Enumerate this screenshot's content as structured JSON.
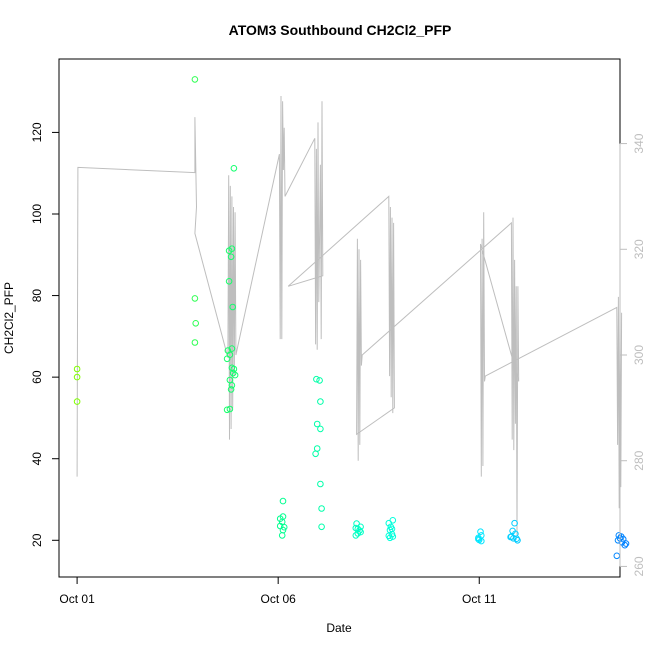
{
  "chart_data": {
    "type": "scatter",
    "title": "ATOM3 Southbound CH2Cl2_PFP",
    "xlabel": "Date",
    "ylabel": "CH2Cl2_PFP",
    "x_ticks": [
      {
        "label": "Oct 01",
        "day": 1
      },
      {
        "label": "Oct 06",
        "day": 6
      },
      {
        "label": "Oct 11",
        "day": 11
      }
    ],
    "xlim_days": [
      0.55,
      14.5
    ],
    "ylim": [
      11,
      138
    ],
    "y_ticks": [
      20,
      40,
      60,
      80,
      100,
      120
    ],
    "y2lim": [
      258,
      356
    ],
    "y2_ticks": [
      260,
      280,
      300,
      320,
      340
    ],
    "y2_color": "#bebebe",
    "grid": false,
    "legend": "none",
    "series": [
      {
        "color_by": "date",
        "colors": [
          "#80ff00",
          "#00ff80",
          "#00ffff",
          "#0080ff"
        ],
        "points": [
          {
            "day": 1.0,
            "y": 62
          },
          {
            "day": 1.0,
            "y": 60
          },
          {
            "day": 1.0,
            "y": 54
          },
          {
            "day": 3.93,
            "y": 133
          },
          {
            "day": 3.93,
            "y": 79.3
          },
          {
            "day": 3.95,
            "y": 73.2
          },
          {
            "day": 3.93,
            "y": 68.5
          },
          {
            "day": 4.78,
            "y": 91
          },
          {
            "day": 4.83,
            "y": 89.5
          },
          {
            "day": 4.85,
            "y": 91.5
          },
          {
            "day": 4.9,
            "y": 111.2
          },
          {
            "day": 4.78,
            "y": 83.5
          },
          {
            "day": 4.87,
            "y": 77.2
          },
          {
            "day": 4.85,
            "y": 67
          },
          {
            "day": 4.75,
            "y": 66.5
          },
          {
            "day": 4.73,
            "y": 64.5
          },
          {
            "day": 4.8,
            "y": 65.5
          },
          {
            "day": 4.85,
            "y": 62.3
          },
          {
            "day": 4.9,
            "y": 62
          },
          {
            "day": 4.88,
            "y": 61
          },
          {
            "day": 4.93,
            "y": 60.5
          },
          {
            "day": 4.8,
            "y": 59.3
          },
          {
            "day": 4.85,
            "y": 58
          },
          {
            "day": 4.83,
            "y": 57
          },
          {
            "day": 4.73,
            "y": 52
          },
          {
            "day": 4.8,
            "y": 52.2
          },
          {
            "day": 6.12,
            "y": 29.6
          },
          {
            "day": 6.12,
            "y": 25.8
          },
          {
            "day": 6.05,
            "y": 25.3
          },
          {
            "day": 6.1,
            "y": 24.5
          },
          {
            "day": 6.05,
            "y": 23.5
          },
          {
            "day": 6.15,
            "y": 23.2
          },
          {
            "day": 6.12,
            "y": 22.5
          },
          {
            "day": 6.1,
            "y": 21.2
          },
          {
            "day": 6.95,
            "y": 59.5
          },
          {
            "day": 7.03,
            "y": 59.2
          },
          {
            "day": 7.05,
            "y": 54
          },
          {
            "day": 6.97,
            "y": 48.5
          },
          {
            "day": 7.05,
            "y": 47.3
          },
          {
            "day": 6.97,
            "y": 42.5
          },
          {
            "day": 6.93,
            "y": 41.2
          },
          {
            "day": 7.05,
            "y": 33.8
          },
          {
            "day": 7.08,
            "y": 27.8
          },
          {
            "day": 7.08,
            "y": 23.3
          },
          {
            "day": 7.95,
            "y": 24.1
          },
          {
            "day": 7.93,
            "y": 23
          },
          {
            "day": 8.02,
            "y": 22.4
          },
          {
            "day": 7.98,
            "y": 21.7
          },
          {
            "day": 7.93,
            "y": 21.2
          },
          {
            "day": 8.05,
            "y": 23.3
          },
          {
            "day": 7.98,
            "y": 22.8
          },
          {
            "day": 8.05,
            "y": 22
          },
          {
            "day": 8.75,
            "y": 24.2
          },
          {
            "day": 8.85,
            "y": 24.9
          },
          {
            "day": 8.8,
            "y": 23.3
          },
          {
            "day": 8.78,
            "y": 22.5
          },
          {
            "day": 8.83,
            "y": 22.8
          },
          {
            "day": 8.75,
            "y": 21.1
          },
          {
            "day": 8.85,
            "y": 20.9
          },
          {
            "day": 8.78,
            "y": 20.6
          },
          {
            "day": 8.83,
            "y": 21.5
          },
          {
            "day": 11.03,
            "y": 22.1
          },
          {
            "day": 11.05,
            "y": 21.2
          },
          {
            "day": 10.98,
            "y": 20.6
          },
          {
            "day": 11.0,
            "y": 20.1
          },
          {
            "day": 11.05,
            "y": 19.8
          },
          {
            "day": 10.98,
            "y": 20.3
          },
          {
            "day": 11.88,
            "y": 24.2
          },
          {
            "day": 11.83,
            "y": 22.3
          },
          {
            "day": 11.9,
            "y": 21.6
          },
          {
            "day": 11.8,
            "y": 20.9
          },
          {
            "day": 11.85,
            "y": 20.5
          },
          {
            "day": 11.78,
            "y": 20.8
          },
          {
            "day": 11.93,
            "y": 20.4
          },
          {
            "day": 11.95,
            "y": 20
          },
          {
            "day": 14.47,
            "y": 21.2
          },
          {
            "day": 14.53,
            "y": 20.9
          },
          {
            "day": 14.5,
            "y": 20.5
          },
          {
            "day": 14.58,
            "y": 20.3
          },
          {
            "day": 14.45,
            "y": 20
          },
          {
            "day": 14.55,
            "y": 19.5
          },
          {
            "day": 14.65,
            "y": 19.2
          },
          {
            "day": 14.62,
            "y": 18.8
          },
          {
            "day": 14.42,
            "y": 16.2
          }
        ]
      },
      {
        "axis": "right",
        "type": "line",
        "color": "#bebebe",
        "points": [
          {
            "day": 1.0,
            "y": 277
          },
          {
            "day": 1.02,
            "y": 335.5
          },
          {
            "day": 3.93,
            "y": 334.5
          },
          {
            "day": 3.93,
            "y": 345
          },
          {
            "day": 3.97,
            "y": 328
          },
          {
            "day": 3.93,
            "y": 323
          },
          {
            "day": 4.75,
            "y": 299.5
          },
          {
            "day": 4.77,
            "y": 334
          },
          {
            "day": 4.79,
            "y": 284
          },
          {
            "day": 4.81,
            "y": 332
          },
          {
            "day": 4.83,
            "y": 286
          },
          {
            "day": 4.85,
            "y": 330
          },
          {
            "day": 4.87,
            "y": 290
          },
          {
            "day": 4.89,
            "y": 328
          },
          {
            "day": 4.91,
            "y": 296
          },
          {
            "day": 4.93,
            "y": 327
          },
          {
            "day": 4.95,
            "y": 300
          },
          {
            "day": 6.03,
            "y": 338
          },
          {
            "day": 6.05,
            "y": 303
          },
          {
            "day": 6.07,
            "y": 349
          },
          {
            "day": 6.09,
            "y": 303
          },
          {
            "day": 6.11,
            "y": 348
          },
          {
            "day": 6.13,
            "y": 335
          },
          {
            "day": 6.15,
            "y": 343
          },
          {
            "day": 6.17,
            "y": 330
          },
          {
            "day": 6.91,
            "y": 341
          },
          {
            "day": 6.93,
            "y": 302
          },
          {
            "day": 6.95,
            "y": 339
          },
          {
            "day": 6.97,
            "y": 301
          },
          {
            "day": 6.99,
            "y": 344
          },
          {
            "day": 7.01,
            "y": 310
          },
          {
            "day": 7.05,
            "y": 336
          },
          {
            "day": 7.07,
            "y": 303
          },
          {
            "day": 7.09,
            "y": 348
          },
          {
            "day": 7.11,
            "y": 315
          },
          {
            "day": 6.25,
            "y": 313
          },
          {
            "day": 8.75,
            "y": 330
          },
          {
            "day": 8.77,
            "y": 296
          },
          {
            "day": 8.79,
            "y": 328
          },
          {
            "day": 8.81,
            "y": 292
          },
          {
            "day": 8.83,
            "y": 326
          },
          {
            "day": 8.85,
            "y": 289
          },
          {
            "day": 8.87,
            "y": 325
          },
          {
            "day": 8.89,
            "y": 290
          },
          {
            "day": 7.95,
            "y": 285
          },
          {
            "day": 7.97,
            "y": 322
          },
          {
            "day": 7.99,
            "y": 280
          },
          {
            "day": 8.01,
            "y": 320
          },
          {
            "day": 8.03,
            "y": 283
          },
          {
            "day": 8.05,
            "y": 318
          },
          {
            "day": 8.07,
            "y": 298
          },
          {
            "day": 8.09,
            "y": 300
          },
          {
            "day": 11.8,
            "y": 325
          },
          {
            "day": 11.82,
            "y": 284
          },
          {
            "day": 11.84,
            "y": 326
          },
          {
            "day": 11.86,
            "y": 282
          },
          {
            "day": 11.88,
            "y": 318
          },
          {
            "day": 11.9,
            "y": 287
          },
          {
            "day": 11.92,
            "y": 313
          },
          {
            "day": 11.94,
            "y": 266
          },
          {
            "day": 11.96,
            "y": 313
          },
          {
            "day": 11.98,
            "y": 295
          },
          {
            "day": 11.03,
            "y": 321
          },
          {
            "day": 11.05,
            "y": 277
          },
          {
            "day": 11.07,
            "y": 322
          },
          {
            "day": 11.09,
            "y": 279
          },
          {
            "day": 11.11,
            "y": 327
          },
          {
            "day": 11.13,
            "y": 295
          },
          {
            "day": 11.15,
            "y": 296
          },
          {
            "day": 14.42,
            "y": 309
          },
          {
            "day": 14.44,
            "y": 283
          },
          {
            "day": 14.46,
            "y": 311
          },
          {
            "day": 14.48,
            "y": 271
          },
          {
            "day": 14.5,
            "y": 309
          },
          {
            "day": 14.52,
            "y": 275
          },
          {
            "day": 14.54,
            "y": 308
          }
        ]
      }
    ]
  }
}
